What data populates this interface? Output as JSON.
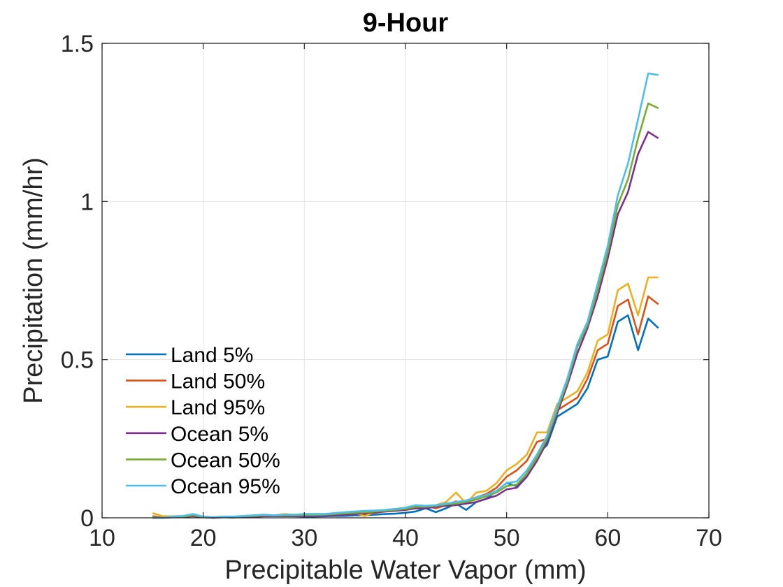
{
  "chart_data": {
    "type": "line",
    "title": "9-Hour",
    "xlabel": "Precipitable Water Vapor (mm)",
    "ylabel": "Precipitation (mm/hr)",
    "xlim": [
      10,
      70
    ],
    "ylim": [
      0,
      1.5
    ],
    "xticks": [
      10,
      20,
      30,
      40,
      50,
      60,
      70
    ],
    "yticks": [
      0,
      0.5,
      1,
      1.5
    ],
    "xtick_labels": [
      "10",
      "20",
      "30",
      "40",
      "50",
      "60",
      "70"
    ],
    "ytick_labels": [
      "0",
      "0.5",
      "1",
      "1.5"
    ],
    "grid": true,
    "legend_position": "lower-left",
    "x": [
      15,
      16,
      17,
      18,
      19,
      20,
      21,
      22,
      23,
      24,
      25,
      26,
      27,
      28,
      29,
      30,
      31,
      32,
      33,
      34,
      35,
      36,
      37,
      38,
      39,
      40,
      41,
      42,
      43,
      44,
      45,
      46,
      47,
      48,
      49,
      50,
      51,
      52,
      53,
      54,
      55,
      56,
      57,
      58,
      59,
      60,
      61,
      62,
      63,
      64,
      65
    ],
    "series": [
      {
        "name": "Land 5%",
        "color": "#0072BD",
        "values": [
          0.005,
          0.0,
          0.002,
          0.003,
          0.005,
          0.002,
          0.0,
          0.002,
          0.001,
          0.003,
          0.003,
          0.005,
          0.005,
          0.005,
          0.005,
          0.004,
          0.004,
          0.005,
          0.006,
          0.006,
          0.008,
          0.008,
          0.01,
          0.012,
          0.013,
          0.016,
          0.02,
          0.03,
          0.018,
          0.03,
          0.045,
          0.025,
          0.05,
          0.06,
          0.085,
          0.11,
          0.1,
          0.14,
          0.2,
          0.23,
          0.32,
          0.34,
          0.36,
          0.41,
          0.5,
          0.51,
          0.62,
          0.64,
          0.53,
          0.63,
          0.6
        ]
      },
      {
        "name": "Land 50%",
        "color": "#D95319",
        "values": [
          0.005,
          0.0,
          0.002,
          0.004,
          0.006,
          0.002,
          0.0,
          0.002,
          0.001,
          0.004,
          0.004,
          0.006,
          0.006,
          0.007,
          0.007,
          0.007,
          0.007,
          0.008,
          0.01,
          0.01,
          0.012,
          0.013,
          0.016,
          0.02,
          0.023,
          0.026,
          0.03,
          0.038,
          0.03,
          0.04,
          0.052,
          0.045,
          0.065,
          0.075,
          0.095,
          0.13,
          0.15,
          0.18,
          0.24,
          0.25,
          0.34,
          0.36,
          0.38,
          0.44,
          0.53,
          0.55,
          0.67,
          0.69,
          0.58,
          0.7,
          0.675
        ]
      },
      {
        "name": "Land 95%",
        "color": "#EDB120",
        "values": [
          0.015,
          0.005,
          0.005,
          0.006,
          0.008,
          0.004,
          0.002,
          0.004,
          0.003,
          0.006,
          0.008,
          0.01,
          0.008,
          0.012,
          0.01,
          0.012,
          0.012,
          0.012,
          0.014,
          0.015,
          0.015,
          0.005,
          0.02,
          0.025,
          0.028,
          0.032,
          0.035,
          0.03,
          0.04,
          0.05,
          0.08,
          0.045,
          0.08,
          0.085,
          0.11,
          0.15,
          0.17,
          0.2,
          0.27,
          0.27,
          0.36,
          0.38,
          0.4,
          0.46,
          0.56,
          0.58,
          0.72,
          0.74,
          0.64,
          0.76,
          0.76
        ]
      },
      {
        "name": "Ocean 5%",
        "color": "#7E2F8E",
        "values": [
          0.0,
          0.0,
          0.002,
          0.003,
          0.005,
          0.002,
          0.0,
          0.002,
          0.001,
          0.003,
          0.003,
          0.005,
          0.005,
          0.006,
          0.006,
          0.006,
          0.006,
          0.007,
          0.008,
          0.01,
          0.012,
          0.015,
          0.018,
          0.02,
          0.022,
          0.025,
          0.03,
          0.03,
          0.035,
          0.038,
          0.04,
          0.045,
          0.05,
          0.06,
          0.07,
          0.09,
          0.095,
          0.13,
          0.18,
          0.24,
          0.33,
          0.42,
          0.52,
          0.6,
          0.7,
          0.82,
          0.96,
          1.03,
          1.15,
          1.22,
          1.2
        ]
      },
      {
        "name": "Ocean 50%",
        "color": "#77AC30",
        "values": [
          0.0,
          0.0,
          0.003,
          0.004,
          0.008,
          0.003,
          0.001,
          0.003,
          0.003,
          0.005,
          0.006,
          0.008,
          0.007,
          0.008,
          0.008,
          0.009,
          0.009,
          0.01,
          0.012,
          0.014,
          0.016,
          0.018,
          0.02,
          0.022,
          0.025,
          0.028,
          0.035,
          0.035,
          0.038,
          0.042,
          0.045,
          0.05,
          0.058,
          0.068,
          0.08,
          0.1,
          0.105,
          0.14,
          0.19,
          0.25,
          0.34,
          0.43,
          0.54,
          0.61,
          0.72,
          0.84,
          0.99,
          1.07,
          1.2,
          1.31,
          1.295
        ]
      },
      {
        "name": "Ocean 95%",
        "color": "#4DBEEE",
        "values": [
          0.0,
          0.0,
          0.004,
          0.006,
          0.012,
          0.004,
          0.002,
          0.004,
          0.004,
          0.006,
          0.008,
          0.01,
          0.008,
          0.01,
          0.01,
          0.012,
          0.012,
          0.012,
          0.015,
          0.018,
          0.02,
          0.022,
          0.023,
          0.025,
          0.028,
          0.032,
          0.04,
          0.038,
          0.04,
          0.045,
          0.05,
          0.055,
          0.065,
          0.072,
          0.085,
          0.11,
          0.115,
          0.15,
          0.2,
          0.26,
          0.35,
          0.44,
          0.55,
          0.62,
          0.74,
          0.86,
          1.02,
          1.12,
          1.26,
          1.405,
          1.4
        ]
      }
    ]
  }
}
